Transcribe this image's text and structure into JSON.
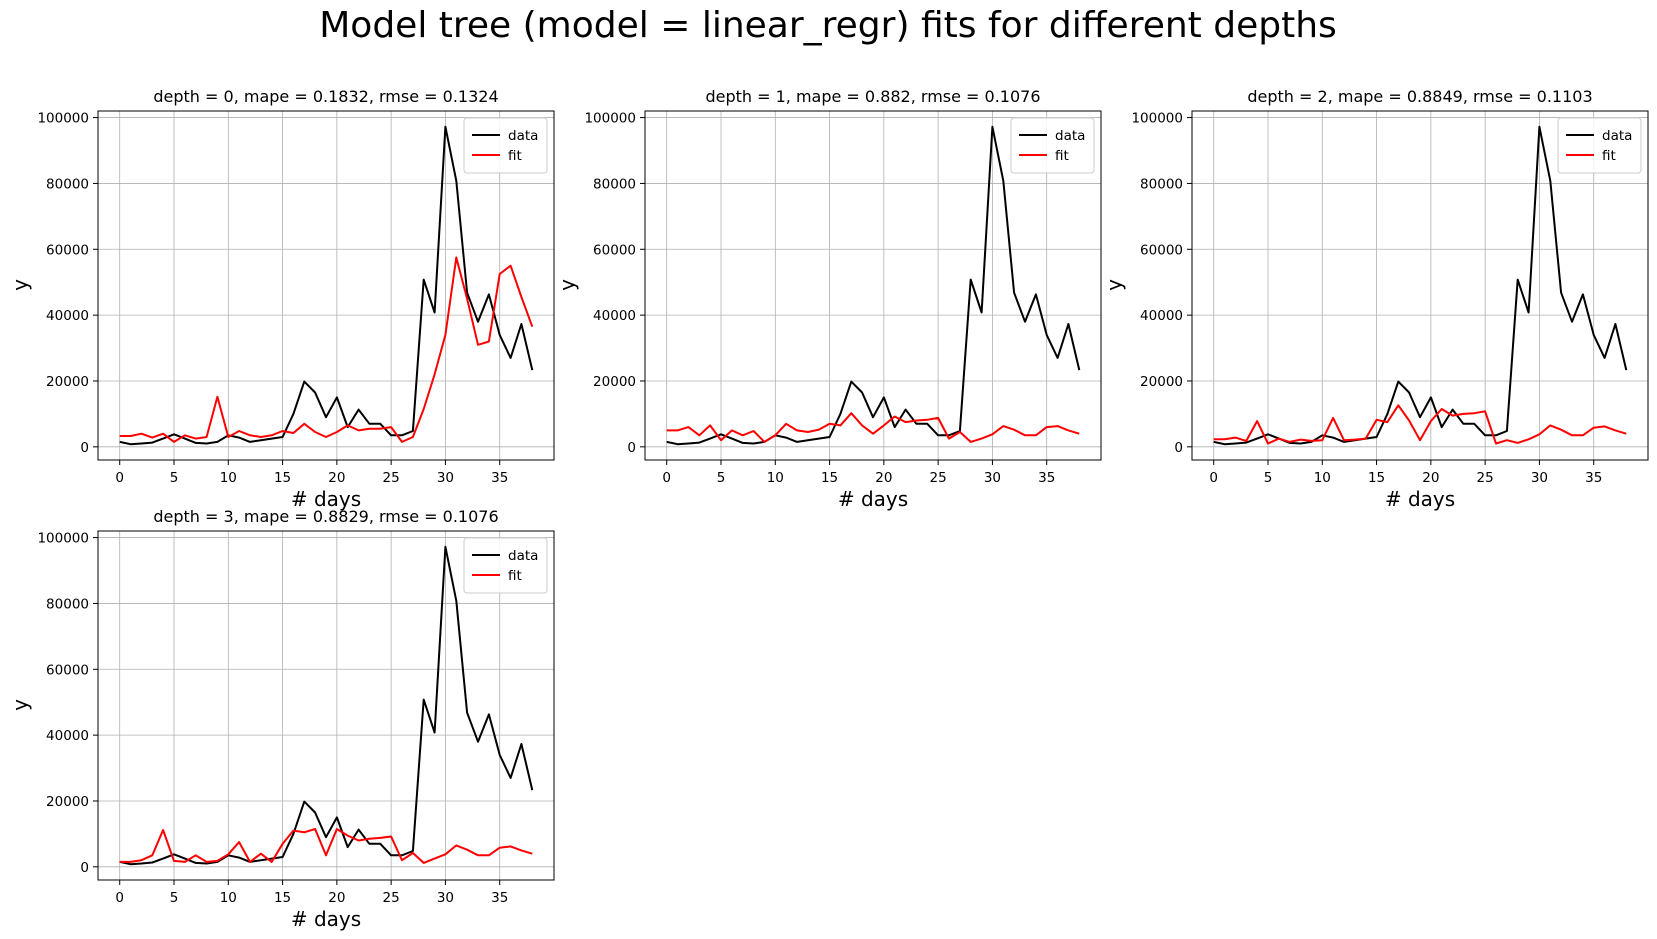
{
  "figure": {
    "suptitle": "Model tree (model = linear_regr) fits for different depths"
  },
  "chart_data": [
    {
      "type": "line",
      "title": "depth = 0, mape = 0.1832, rmse = 0.1324",
      "xlabel": "# days",
      "ylabel": "y",
      "xlim": [
        -2,
        40
      ],
      "ylim": [
        -4000,
        102000
      ],
      "xticks": [
        0,
        5,
        10,
        15,
        20,
        25,
        30,
        35
      ],
      "yticks": [
        0,
        20000,
        40000,
        60000,
        80000,
        100000
      ],
      "grid": true,
      "legend": "top-right",
      "x": [
        0,
        1,
        2,
        3,
        4,
        5,
        6,
        7,
        8,
        9,
        10,
        11,
        12,
        13,
        14,
        15,
        16,
        17,
        18,
        19,
        20,
        21,
        22,
        23,
        24,
        25,
        26,
        27,
        28,
        29,
        30,
        31,
        32,
        33,
        34,
        35,
        36,
        37,
        38
      ],
      "series": [
        {
          "name": "data",
          "color": "#000000",
          "values": [
            1500,
            800,
            1000,
            1300,
            2500,
            3800,
            2500,
            1200,
            1000,
            1500,
            3500,
            2800,
            1500,
            2000,
            2500,
            3000,
            10000,
            19800,
            16500,
            9000,
            15000,
            6000,
            11300,
            7000,
            7000,
            3500,
            3500,
            4800,
            50800,
            40800,
            97200,
            80800,
            46800,
            38000,
            46300,
            34000,
            27000,
            37300,
            23300
          ]
        },
        {
          "name": "fit",
          "color": "#ff0000",
          "values": [
            3300,
            3300,
            4000,
            2800,
            4000,
            1500,
            3500,
            2500,
            3000,
            15200,
            3000,
            4800,
            3500,
            3000,
            3500,
            4800,
            4200,
            7000,
            4500,
            3000,
            4500,
            6500,
            5000,
            5500,
            5500,
            6000,
            1500,
            3000,
            11500,
            22000,
            34000,
            57500,
            45000,
            31000,
            32000,
            52500,
            55000,
            45500,
            36500
          ]
        }
      ]
    },
    {
      "type": "line",
      "title": "depth = 1, mape = 0.882, rmse = 0.1076",
      "xlabel": "# days",
      "ylabel": "y",
      "xlim": [
        -2,
        40
      ],
      "ylim": [
        -4000,
        102000
      ],
      "xticks": [
        0,
        5,
        10,
        15,
        20,
        25,
        30,
        35
      ],
      "yticks": [
        0,
        20000,
        40000,
        60000,
        80000,
        100000
      ],
      "grid": true,
      "legend": "top-right",
      "x": [
        0,
        1,
        2,
        3,
        4,
        5,
        6,
        7,
        8,
        9,
        10,
        11,
        12,
        13,
        14,
        15,
        16,
        17,
        18,
        19,
        20,
        21,
        22,
        23,
        24,
        25,
        26,
        27,
        28,
        29,
        30,
        31,
        32,
        33,
        34,
        35,
        36,
        37,
        38
      ],
      "series": [
        {
          "name": "data",
          "color": "#000000",
          "values": [
            1500,
            800,
            1000,
            1300,
            2500,
            3800,
            2500,
            1200,
            1000,
            1500,
            3500,
            2800,
            1500,
            2000,
            2500,
            3000,
            10000,
            19800,
            16500,
            9000,
            15000,
            6000,
            11300,
            7000,
            7000,
            3500,
            3500,
            4800,
            50800,
            40800,
            97200,
            80800,
            46800,
            38000,
            46300,
            34000,
            27000,
            37300,
            23300
          ]
        },
        {
          "name": "fit",
          "color": "#ff0000",
          "values": [
            5000,
            5000,
            6000,
            3500,
            6500,
            2000,
            5000,
            3500,
            4800,
            1500,
            3500,
            7000,
            5000,
            4500,
            5200,
            7000,
            6500,
            10200,
            6500,
            4000,
            6500,
            9200,
            7500,
            8000,
            8200,
            8800,
            2500,
            4500,
            1500,
            2500,
            3800,
            6300,
            5200,
            3500,
            3500,
            6000,
            6300,
            5000,
            4000
          ]
        }
      ]
    },
    {
      "type": "line",
      "title": "depth = 2, mape = 0.8849, rmse = 0.1103",
      "xlabel": "# days",
      "ylabel": "y",
      "xlim": [
        -2,
        40
      ],
      "ylim": [
        -4000,
        102000
      ],
      "xticks": [
        0,
        5,
        10,
        15,
        20,
        25,
        30,
        35
      ],
      "yticks": [
        0,
        20000,
        40000,
        60000,
        80000,
        100000
      ],
      "grid": true,
      "legend": "top-right",
      "x": [
        0,
        1,
        2,
        3,
        4,
        5,
        6,
        7,
        8,
        9,
        10,
        11,
        12,
        13,
        14,
        15,
        16,
        17,
        18,
        19,
        20,
        21,
        22,
        23,
        24,
        25,
        26,
        27,
        28,
        29,
        30,
        31,
        32,
        33,
        34,
        35,
        36,
        37,
        38
      ],
      "series": [
        {
          "name": "data",
          "color": "#000000",
          "values": [
            1500,
            800,
            1000,
            1300,
            2500,
            3800,
            2500,
            1200,
            1000,
            1500,
            3500,
            2800,
            1500,
            2000,
            2500,
            3000,
            10000,
            19800,
            16500,
            9000,
            15000,
            6000,
            11300,
            7000,
            7000,
            3500,
            3500,
            4800,
            50800,
            40800,
            97200,
            80800,
            46800,
            38000,
            46300,
            34000,
            27000,
            37300,
            23300
          ]
        },
        {
          "name": "fit",
          "color": "#ff0000",
          "values": [
            2300,
            2300,
            2800,
            1800,
            7800,
            1000,
            2500,
            1500,
            2200,
            1800,
            2000,
            8800,
            2000,
            2200,
            2500,
            8200,
            7500,
            12600,
            8000,
            2000,
            7800,
            11500,
            9500,
            10000,
            10200,
            10800,
            1000,
            2000,
            1200,
            2300,
            3800,
            6500,
            5200,
            3500,
            3500,
            5800,
            6200,
            5000,
            4000
          ]
        }
      ]
    },
    {
      "type": "line",
      "title": "depth = 3, mape = 0.8829, rmse = 0.1076",
      "xlabel": "# days",
      "ylabel": "y",
      "xlim": [
        -2,
        40
      ],
      "ylim": [
        -4000,
        102000
      ],
      "xticks": [
        0,
        5,
        10,
        15,
        20,
        25,
        30,
        35
      ],
      "yticks": [
        0,
        20000,
        40000,
        60000,
        80000,
        100000
      ],
      "grid": true,
      "legend": "top-right",
      "x": [
        0,
        1,
        2,
        3,
        4,
        5,
        6,
        7,
        8,
        9,
        10,
        11,
        12,
        13,
        14,
        15,
        16,
        17,
        18,
        19,
        20,
        21,
        22,
        23,
        24,
        25,
        26,
        27,
        28,
        29,
        30,
        31,
        32,
        33,
        34,
        35,
        36,
        37,
        38
      ],
      "series": [
        {
          "name": "data",
          "color": "#000000",
          "values": [
            1500,
            800,
            1000,
            1300,
            2500,
            3800,
            2500,
            1200,
            1000,
            1500,
            3500,
            2800,
            1500,
            2000,
            2500,
            3000,
            10000,
            19800,
            16500,
            9000,
            15000,
            6000,
            11300,
            7000,
            7000,
            3500,
            3500,
            4800,
            50800,
            40800,
            97200,
            80800,
            46800,
            38000,
            46300,
            34000,
            27000,
            37300,
            23300
          ]
        },
        {
          "name": "fit",
          "color": "#ff0000",
          "values": [
            1500,
            1500,
            2000,
            3500,
            11200,
            1800,
            1500,
            3500,
            1500,
            1800,
            3800,
            7500,
            1500,
            4000,
            1500,
            7000,
            11000,
            10500,
            11500,
            3500,
            11500,
            9500,
            8000,
            8500,
            8800,
            9200,
            2000,
            4200,
            1200,
            2500,
            3800,
            6500,
            5200,
            3500,
            3500,
            5800,
            6200,
            5000,
            4000
          ]
        }
      ]
    }
  ]
}
